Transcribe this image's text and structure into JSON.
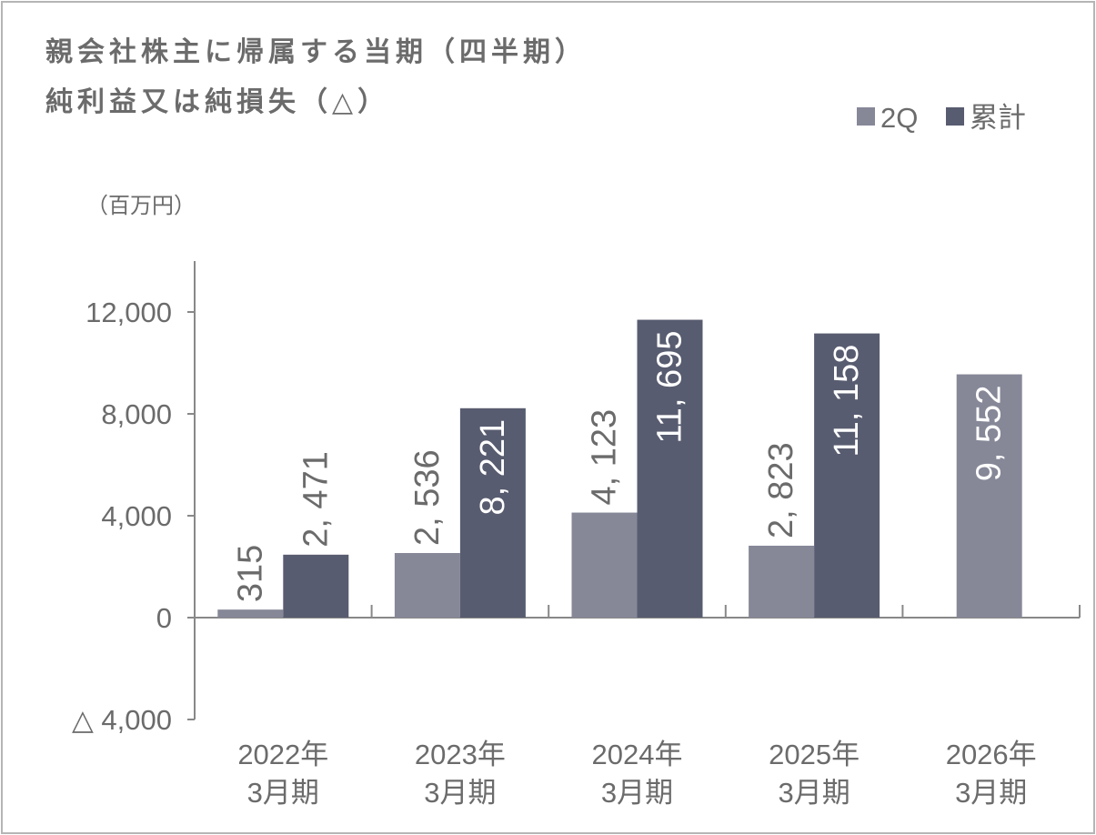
{
  "chart_data": {
    "type": "bar",
    "title_line1": "親会社株主に帰属する当期（四半期）",
    "title_line2": "純利益又は純損失（△）",
    "unit": "（百万円）",
    "categories": [
      [
        "2022年",
        "3月期"
      ],
      [
        "2023年",
        "3月期"
      ],
      [
        "2024年",
        "3月期"
      ],
      [
        "2025年",
        "3月期"
      ],
      [
        "2026年",
        "3月期"
      ]
    ],
    "series": [
      {
        "name": "2Q",
        "color": "#868898",
        "values": [
          315,
          2536,
          4123,
          2823,
          9552
        ],
        "labels": [
          "315",
          "2, 536",
          "4, 123",
          "2, 823",
          "9, 552"
        ]
      },
      {
        "name": "累計",
        "color": "#585c70",
        "values": [
          2471,
          8221,
          11695,
          11158,
          null
        ],
        "labels": [
          "2, 471",
          "8, 221",
          "11, 695",
          "11, 158",
          ""
        ]
      }
    ],
    "yticks": [
      -4000,
      0,
      4000,
      8000,
      12000
    ],
    "ytick_labels": [
      "△ 4,000",
      "0",
      "4,000",
      "8,000",
      "12,000"
    ],
    "ylim": [
      -4000,
      14000
    ],
    "legend": "top-right",
    "grid": false
  }
}
